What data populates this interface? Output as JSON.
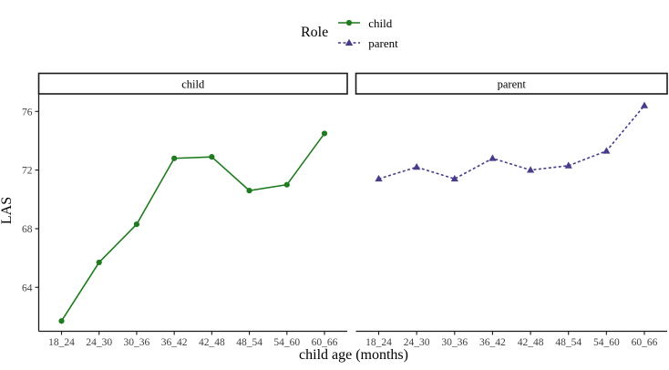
{
  "chart_data": {
    "type": "line",
    "title": "",
    "xlabel": "child age (months)",
    "ylabel": "LAS",
    "categories": [
      "18_24",
      "24_30",
      "30_36",
      "36_42",
      "42_48",
      "48_54",
      "54_60",
      "60_66"
    ],
    "yticks": [
      64,
      68,
      72,
      76
    ],
    "ylim": [
      61,
      77.2
    ],
    "grid": "off",
    "legend": {
      "title": "Role",
      "position": "top-center"
    },
    "facets": [
      "child",
      "parent"
    ],
    "series": [
      {
        "name": "child",
        "facet": "child",
        "color": "#1e7b1e",
        "marker": "circle",
        "linestyle": "solid",
        "values": [
          61.7,
          65.7,
          68.3,
          72.8,
          72.9,
          70.6,
          71.0,
          74.5
        ]
      },
      {
        "name": "parent",
        "facet": "parent",
        "color": "#4a3a8c",
        "marker": "triangle",
        "linestyle": "dashed",
        "values": [
          71.4,
          72.2,
          71.4,
          72.8,
          72.0,
          72.3,
          73.3,
          76.4
        ]
      }
    ],
    "style": {
      "axis_color": "#1a1a1a",
      "tick_label_color": "#404040",
      "strip_border_color": "#1a1a1a",
      "strip_fill": "#ffffff",
      "strip_text_color": "#000000"
    }
  }
}
